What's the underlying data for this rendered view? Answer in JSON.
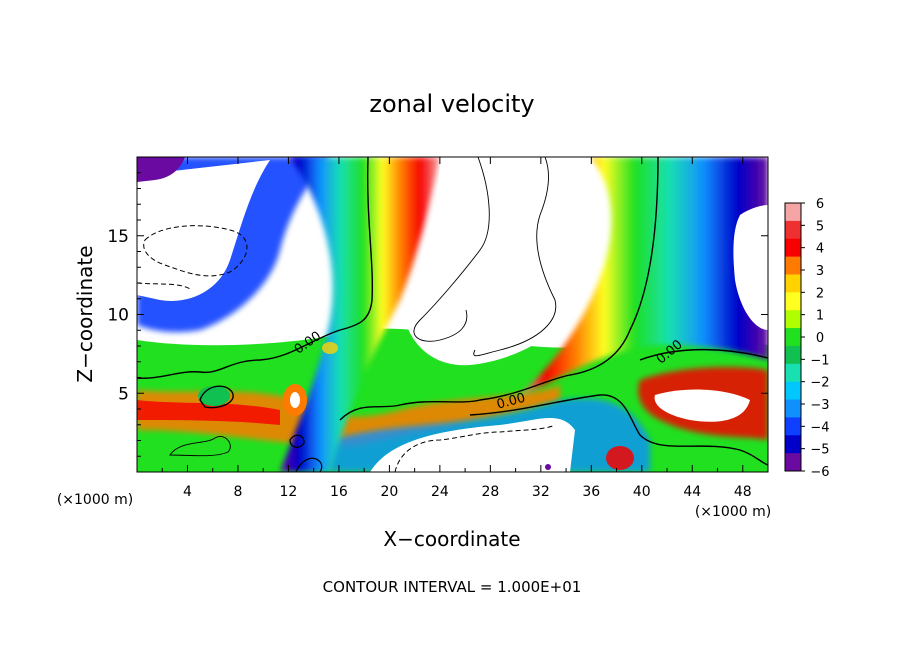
{
  "chart_data": {
    "type": "heatmap",
    "title": "zonal velocity",
    "xlabel": "X−coordinate",
    "ylabel": "Z−coordinate",
    "x_unit": "(×1000 m)",
    "x_unit_right": "(×1000 m)",
    "footer": "CONTOUR INTERVAL = 1.000E+01",
    "xlim": [
      0,
      50
    ],
    "ylim": [
      0,
      20
    ],
    "x_ticks": [
      "4",
      "8",
      "12",
      "16",
      "20",
      "24",
      "28",
      "32",
      "36",
      "40",
      "44",
      "48"
    ],
    "y_ticks": [
      "5",
      "10",
      "15"
    ],
    "colorbar": {
      "labels": [
        "6",
        "5",
        "4",
        "3",
        "2",
        "1",
        "0",
        "−1",
        "−2",
        "−3",
        "−4",
        "−5",
        "−6"
      ],
      "range": [
        -6,
        6
      ],
      "colors": [
        "#f6a5a5",
        "#ef3030",
        "#f70000",
        "#ff7a00",
        "#ffd200",
        "#ffff20",
        "#b0ff00",
        "#20e020",
        "#10c050",
        "#18e0b0",
        "#00c8ff",
        "#1090ff",
        "#1040ff",
        "#0000c8",
        "#6a0aa0"
      ]
    },
    "contour_labels": [
      "0.00",
      "0.00",
      "0.00"
    ],
    "contour_interval": "1.000E+01"
  }
}
